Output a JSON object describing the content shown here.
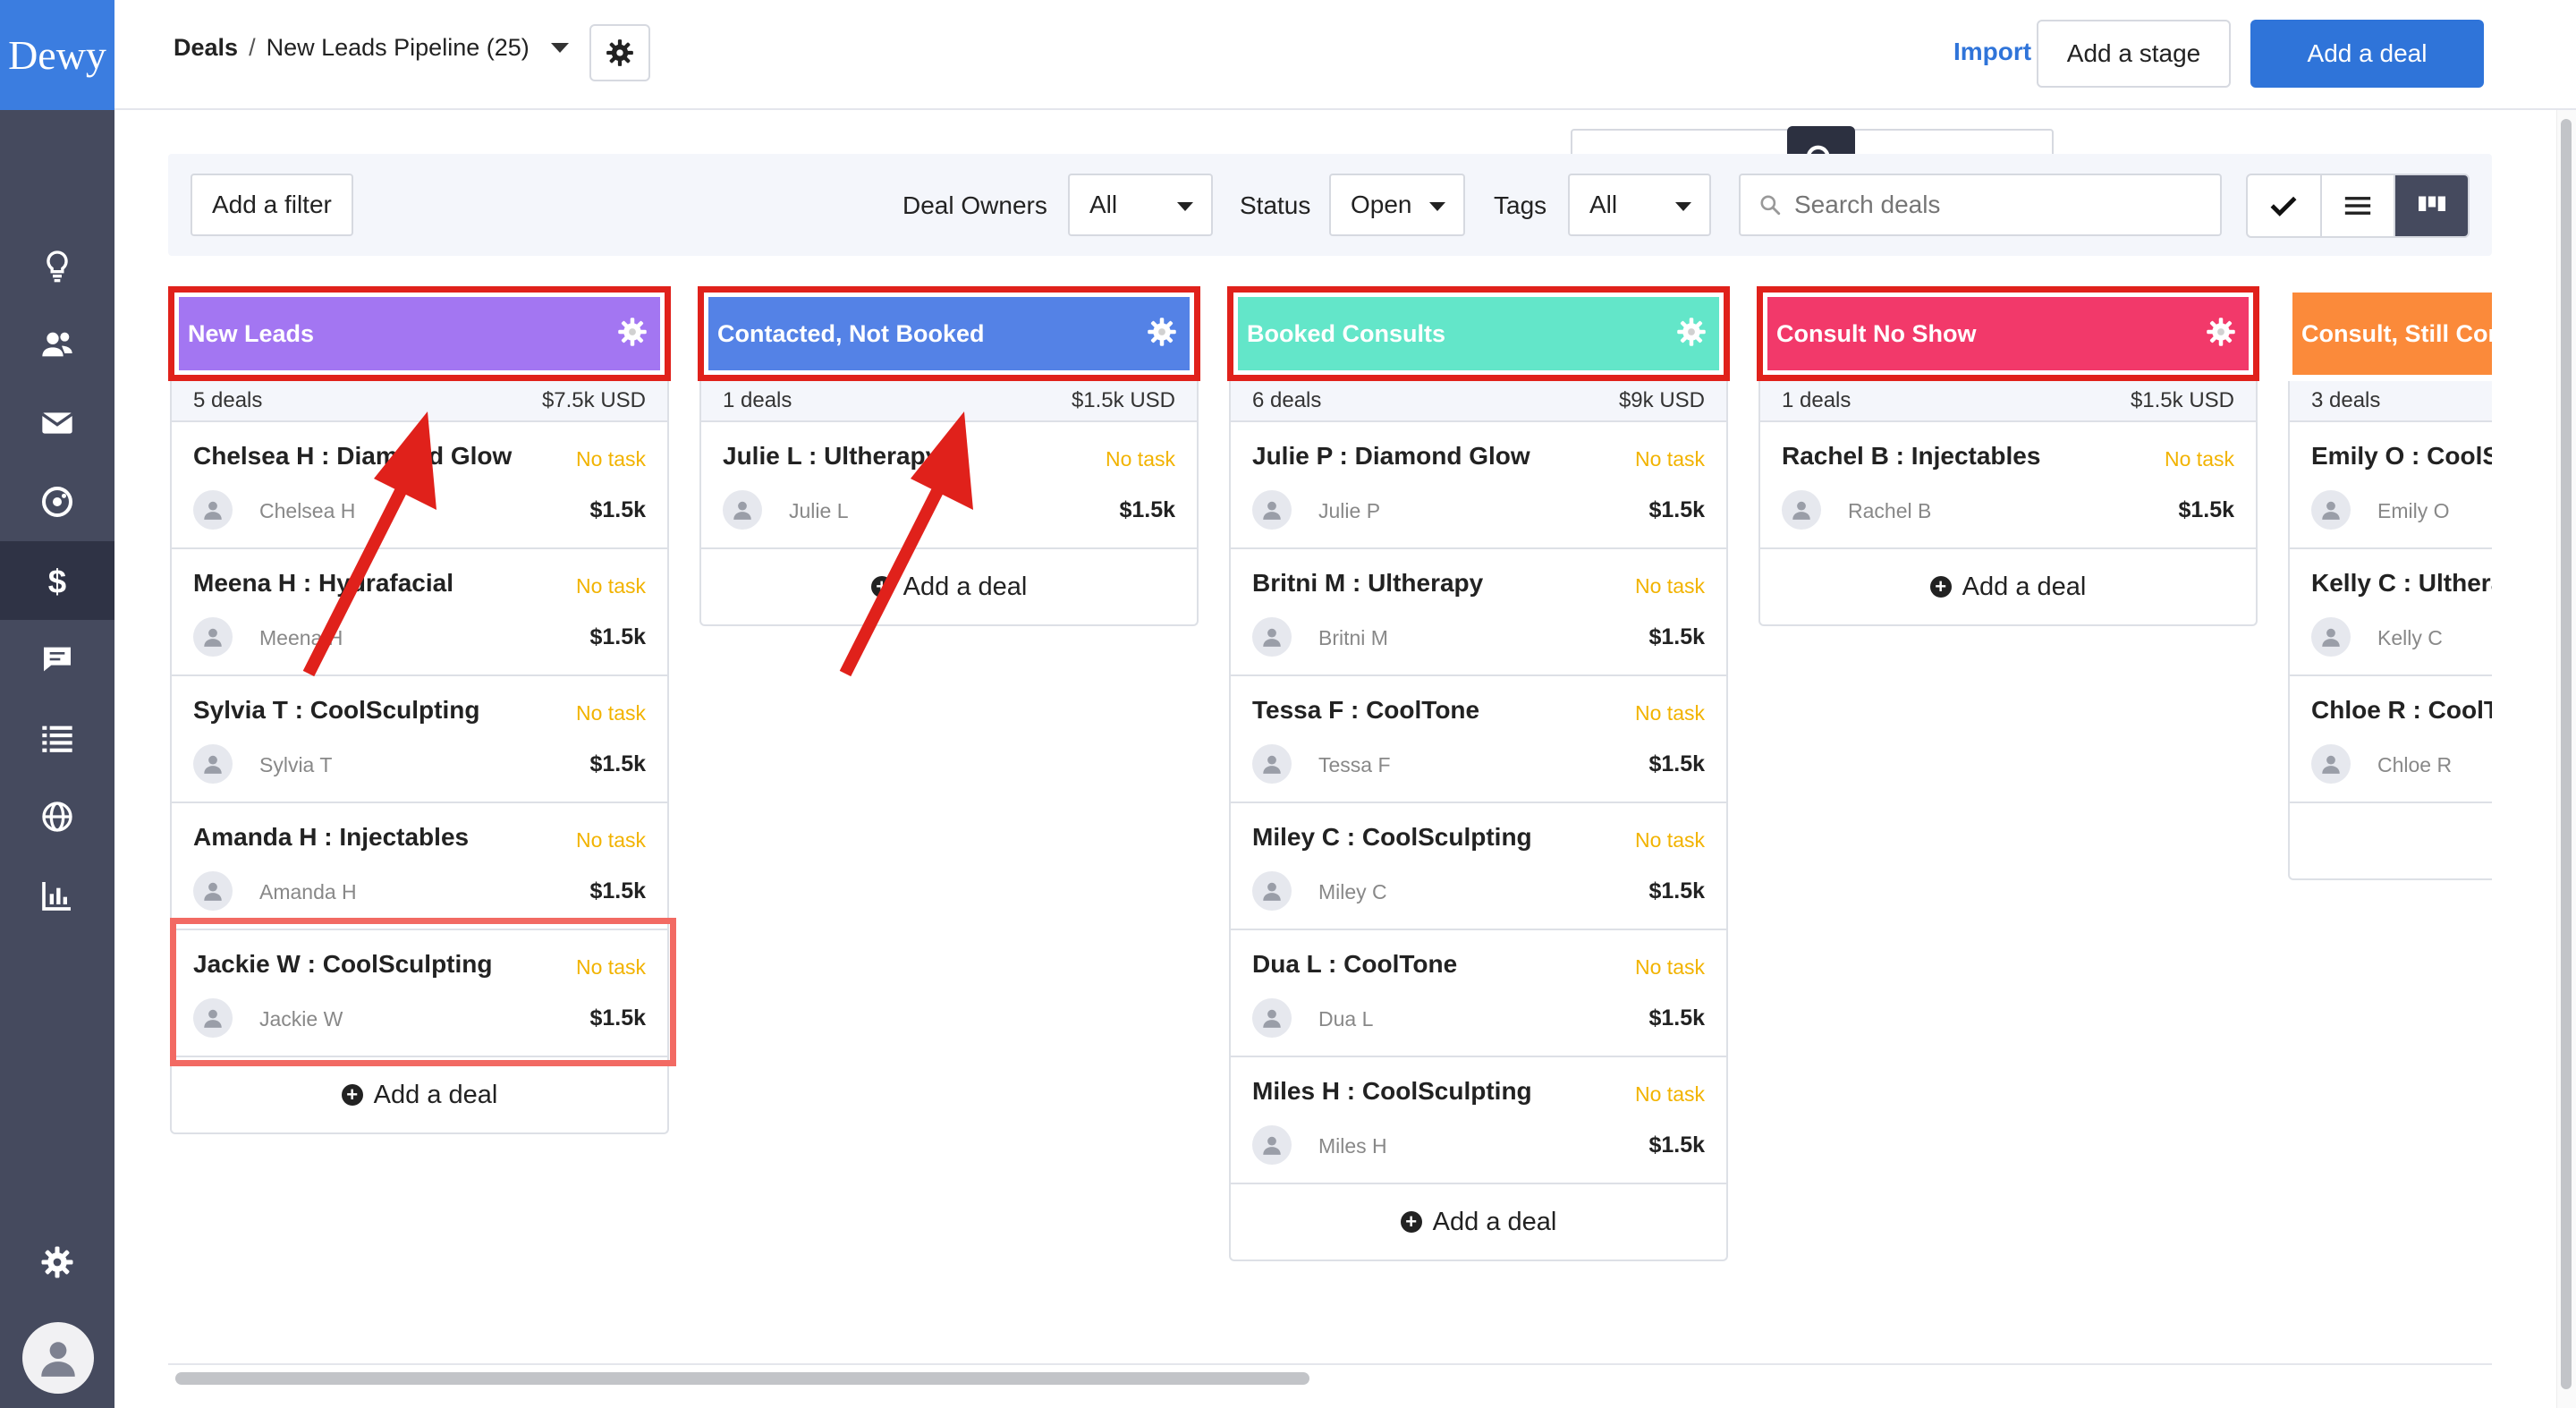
{
  "app": {
    "logo": "Dewy"
  },
  "sidebar": {
    "items": [
      {
        "name": "search-icon"
      },
      {
        "name": "lightbulb-icon"
      },
      {
        "name": "contacts-icon"
      },
      {
        "name": "mail-icon"
      },
      {
        "name": "palette-icon"
      },
      {
        "name": "dollar-icon"
      },
      {
        "name": "chat-icon"
      },
      {
        "name": "list-icon"
      },
      {
        "name": "globe-icon"
      },
      {
        "name": "chart-icon"
      },
      {
        "name": "settings-icon"
      },
      {
        "name": "user-avatar-icon"
      }
    ]
  },
  "header": {
    "breadcrumb_root": "Deals",
    "breadcrumb_sep": "/",
    "pipeline": "New Leads Pipeline (25)",
    "import_label": "Import deals",
    "add_stage_label": "Add a stage",
    "add_deal_label": "Add a deal"
  },
  "filters": {
    "add_filter": "Add a filter",
    "deal_owners_label": "Deal Owners",
    "deal_owners_value": "All",
    "status_label": "Status",
    "status_value": "Open",
    "tags_label": "Tags",
    "tags_value": "All",
    "search_placeholder": "Search deals"
  },
  "colors": {
    "accent": "#2f74d9",
    "sidebar": "#454a5e",
    "no_task": "#f2b300",
    "annotation": "#e0211b"
  },
  "columns": [
    {
      "title": "New Leads",
      "color": "#a376f2",
      "count": "5 deals",
      "total": "$7.5k USD",
      "deals": [
        {
          "title": "Chelsea H : Diamond Glow",
          "task": "No task",
          "owner": "Chelsea H",
          "amount": "$1.5k"
        },
        {
          "title": "Meena H : Hydrafacial",
          "task": "No task",
          "owner": "Meena H",
          "amount": "$1.5k"
        },
        {
          "title": "Sylvia T : CoolSculpting",
          "task": "No task",
          "owner": "Sylvia T",
          "amount": "$1.5k"
        },
        {
          "title": "Amanda H : Injectables",
          "task": "No task",
          "owner": "Amanda H",
          "amount": "$1.5k"
        },
        {
          "title": "Jackie W : CoolSculpting",
          "task": "No task",
          "owner": "Jackie W",
          "amount": "$1.5k"
        }
      ],
      "add_label": "Add a deal"
    },
    {
      "title": "Contacted, Not Booked",
      "color": "#5482e6",
      "count": "1 deals",
      "total": "$1.5k USD",
      "deals": [
        {
          "title": "Julie L : Ultherapy",
          "task": "No task",
          "owner": "Julie L",
          "amount": "$1.5k"
        }
      ],
      "add_label": "Add a deal"
    },
    {
      "title": "Booked Consults",
      "color": "#63e6c9",
      "count": "6 deals",
      "total": "$9k USD",
      "deals": [
        {
          "title": "Julie P : Diamond Glow",
          "task": "No task",
          "owner": "Julie P",
          "amount": "$1.5k"
        },
        {
          "title": "Britni M : Ultherapy",
          "task": "No task",
          "owner": "Britni M",
          "amount": "$1.5k"
        },
        {
          "title": "Tessa F : CoolTone",
          "task": "No task",
          "owner": "Tessa F",
          "amount": "$1.5k"
        },
        {
          "title": "Miley C : CoolSculpting",
          "task": "No task",
          "owner": "Miley C",
          "amount": "$1.5k"
        },
        {
          "title": "Dua L : CoolTone",
          "task": "No task",
          "owner": "Dua L",
          "amount": "$1.5k"
        },
        {
          "title": "Miles H : CoolSculpting",
          "task": "No task",
          "owner": "Miles H",
          "amount": "$1.5k"
        }
      ],
      "add_label": "Add a deal"
    },
    {
      "title": "Consult No Show",
      "color": "#f2396a",
      "count": "1 deals",
      "total": "$1.5k USD",
      "deals": [
        {
          "title": "Rachel B : Injectables",
          "task": "No task",
          "owner": "Rachel B",
          "amount": "$1.5k"
        }
      ],
      "add_label": "Add a deal"
    },
    {
      "title": "Consult, Still Considering",
      "color": "#fb8a3a",
      "count": "3 deals",
      "total": "",
      "deals": [
        {
          "title": "Emily O : CoolSculpting",
          "task": "",
          "owner": "Emily O",
          "amount": ""
        },
        {
          "title": "Kelly C : Ultherapy",
          "task": "",
          "owner": "Kelly C",
          "amount": ""
        },
        {
          "title": "Chloe R : CoolTone",
          "task": "",
          "owner": "Chloe R",
          "amount": ""
        }
      ],
      "add_label": ""
    }
  ]
}
